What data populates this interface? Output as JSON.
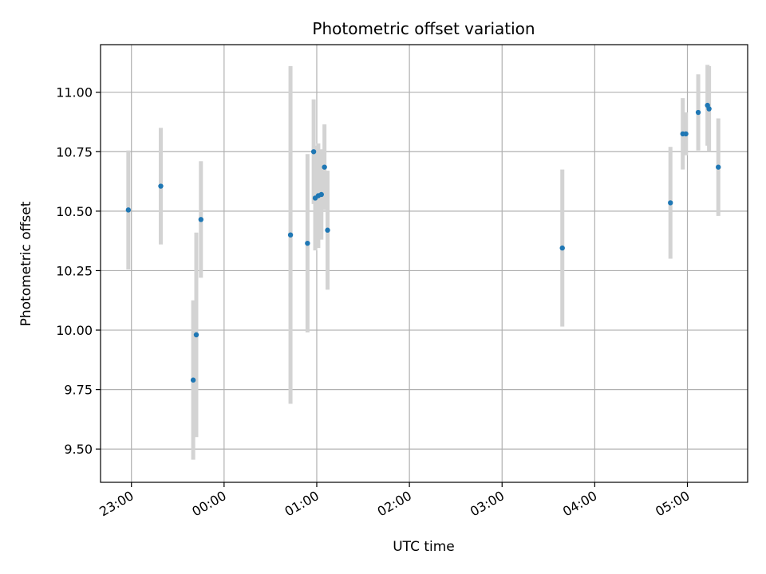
{
  "chart_data": {
    "type": "scatter",
    "title": "Photometric offset variation",
    "xlabel": "UTC time",
    "ylabel": "Photometric offset",
    "x_unit": "UTC time (HH:MM)",
    "xlim": [
      "22:40",
      "05:39"
    ],
    "ylim": [
      9.36,
      11.2
    ],
    "x_ticks": [
      "23:00",
      "00:00",
      "01:00",
      "02:00",
      "03:00",
      "04:00",
      "05:00"
    ],
    "y_ticks": [
      "9.50",
      "9.75",
      "10.00",
      "10.25",
      "10.50",
      "10.75",
      "11.00"
    ],
    "grid": true,
    "colors": {
      "point": "#1f77b4",
      "errorbar": "#d3d3d3",
      "grid": "#b0b0b0"
    },
    "points": [
      {
        "x": "22:58",
        "y": 10.505,
        "err": 0.25
      },
      {
        "x": "23:19",
        "y": 10.605,
        "err": 0.245
      },
      {
        "x": "23:40",
        "y": 9.79,
        "err": 0.335
      },
      {
        "x": "23:42",
        "y": 9.98,
        "err": 0.43
      },
      {
        "x": "23:45",
        "y": 10.465,
        "err": 0.245
      },
      {
        "x": "00:43",
        "y": 10.4,
        "err": 0.71
      },
      {
        "x": "00:54",
        "y": 10.365,
        "err": 0.375
      },
      {
        "x": "00:58",
        "y": 10.75,
        "err": 0.22
      },
      {
        "x": "00:59",
        "y": 10.555,
        "err": 0.22
      },
      {
        "x": "01:01",
        "y": 10.565,
        "err": 0.22
      },
      {
        "x": "01:03",
        "y": 10.57,
        "err": 0.19
      },
      {
        "x": "01:05",
        "y": 10.685,
        "err": 0.18
      },
      {
        "x": "01:07",
        "y": 10.42,
        "err": 0.25
      },
      {
        "x": "03:39",
        "y": 10.345,
        "err": 0.33
      },
      {
        "x": "04:49",
        "y": 10.535,
        "err": 0.235
      },
      {
        "x": "04:57",
        "y": 10.825,
        "err": 0.15
      },
      {
        "x": "04:59",
        "y": 10.825,
        "err": 0.09
      },
      {
        "x": "05:07",
        "y": 10.915,
        "err": 0.16
      },
      {
        "x": "05:13",
        "y": 10.945,
        "err": 0.17
      },
      {
        "x": "05:14",
        "y": 10.93,
        "err": 0.18
      },
      {
        "x": "05:20",
        "y": 10.685,
        "err": 0.205
      }
    ]
  }
}
